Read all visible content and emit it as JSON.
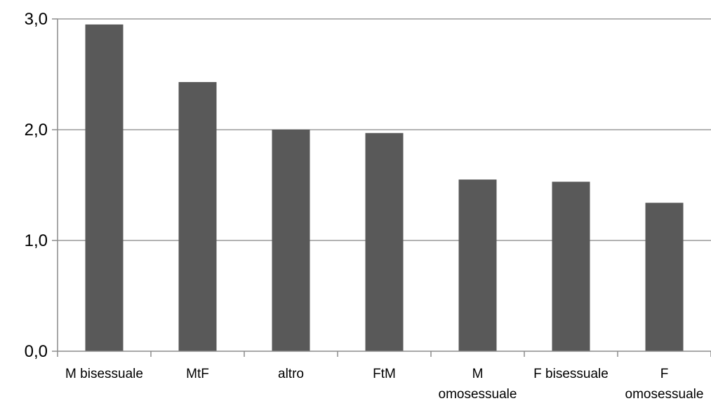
{
  "chart_data": {
    "type": "bar",
    "categories": [
      [
        "M bisessuale"
      ],
      [
        "MtF"
      ],
      [
        "altro"
      ],
      [
        "FtM"
      ],
      [
        "M",
        "omosessuale"
      ],
      [
        "F bisessuale"
      ],
      [
        "F",
        "omosessuale"
      ]
    ],
    "values": [
      2.95,
      2.43,
      2.0,
      1.97,
      1.55,
      1.53,
      1.34
    ],
    "ylim": [
      0,
      3
    ],
    "yticks": [
      0,
      1,
      2,
      3
    ],
    "ytick_labels": [
      "0,0",
      "1,0",
      "2,0",
      "3,0"
    ],
    "grid": true,
    "legend": "none",
    "title": "",
    "xlabel": "",
    "ylabel": "",
    "colors": {
      "bar": "#595959",
      "grid": "#9a9a9a",
      "axis": "#8c8c8c"
    }
  }
}
